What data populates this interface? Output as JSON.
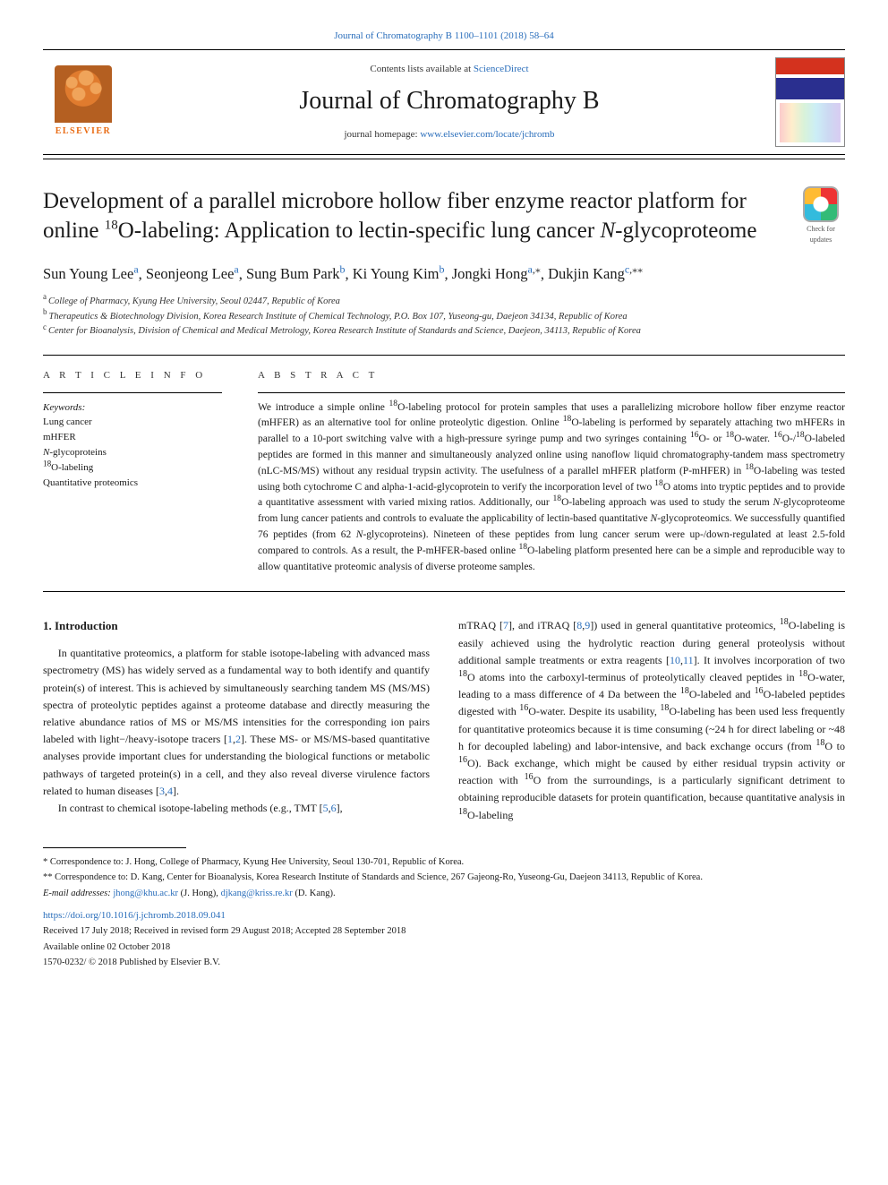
{
  "colors": {
    "link": "#2a6ebb",
    "text": "#1a1a1a",
    "elsevier_orange": "#e96b13",
    "cover_red": "#d4321e",
    "cover_blue": "#2a2f8f",
    "rule": "#000000"
  },
  "typography": {
    "body_family": "Georgia, 'Times New Roman', serif",
    "title_family": "'Times New Roman', serif",
    "journal_name_pt": 28,
    "article_title_pt": 25,
    "authors_pt": 16.5,
    "body_pt": 12,
    "abstract_pt": 11.5,
    "footnote_pt": 10.5
  },
  "top_link": "Journal of Chromatography B 1100–1101 (2018) 58–64",
  "masthead": {
    "contents_text": "Contents lists available at ",
    "contents_link": "ScienceDirect",
    "journal_name": "Journal of Chromatography B",
    "homepage_text": "journal homepage: ",
    "homepage_link": "www.elsevier.com/locate/jchromb",
    "publisher_word": "ELSEVIER"
  },
  "check_updates_label": "Check for updates",
  "title_parts": {
    "pre": "Development of a parallel microbore hollow fiber enzyme reactor platform for online ",
    "iso": "18",
    "mid": "O-labeling: Application to lectin-specific lung cancer ",
    "ital": "N",
    "post": "-glycoproteome"
  },
  "authors": [
    {
      "name": "Sun Young Lee",
      "aff": "a"
    },
    {
      "name": "Seonjeong Lee",
      "aff": "a"
    },
    {
      "name": "Sung Bum Park",
      "aff": "b"
    },
    {
      "name": "Ki Young Kim",
      "aff": "b"
    },
    {
      "name": "Jongki Hong",
      "aff": "a",
      "corr": "*"
    },
    {
      "name": "Dukjin Kang",
      "aff": "c",
      "corr": "**"
    }
  ],
  "affiliations": [
    {
      "key": "a",
      "text": "College of Pharmacy, Kyung Hee University, Seoul 02447, Republic of Korea"
    },
    {
      "key": "b",
      "text": "Therapeutics & Biotechnology Division, Korea Research Institute of Chemical Technology, P.O. Box 107, Yuseong-gu, Daejeon 34134, Republic of Korea"
    },
    {
      "key": "c",
      "text": "Center for Bioanalysis, Division of Chemical and Medical Metrology, Korea Research Institute of Standards and Science, Daejeon, 34113, Republic of Korea"
    }
  ],
  "article_info_head": "A R T I C L E  I N F O",
  "abstract_head": "A B S T R A C T",
  "keywords_label": "Keywords:",
  "keywords": [
    "Lung cancer",
    "mHFER",
    "N-glycoproteins",
    "18O-labeling",
    "Quantitative proteomics"
  ],
  "abstract_text": "We introduce a simple online 18O-labeling protocol for protein samples that uses a parallelizing microbore hollow fiber enzyme reactor (mHFER) as an alternative tool for online proteolytic digestion. Online 18O-labeling is performed by separately attaching two mHFERs in parallel to a 10-port switching valve with a high-pressure syringe pump and two syringes containing 16O- or 18O-water. 16O-/18O-labeled peptides are formed in this manner and simultaneously analyzed online using nanoflow liquid chromatography-tandem mass spectrometry (nLC-MS/MS) without any residual trypsin activity. The usefulness of a parallel mHFER platform (P-mHFER) in 18O-labeling was tested using both cytochrome C and alpha-1-acid-glycoprotein to verify the incorporation level of two 18O atoms into tryptic peptides and to provide a quantitative assessment with varied mixing ratios. Additionally, our 18O-labeling approach was used to study the serum N-glycoproteome from lung cancer patients and controls to evaluate the applicability of lectin-based quantitative N-glycoproteomics. We successfully quantified 76 peptides (from 62 N-glycoproteins). Nineteen of these peptides from lung cancer serum were up-/down-regulated at least 2.5-fold compared to controls. As a result, the P-mHFER-based online 18O-labeling platform presented here can be a simple and reproducible way to allow quantitative proteomic analysis of diverse proteome samples.",
  "section_heading": "1. Introduction",
  "intro_p1": "In quantitative proteomics, a platform for stable isotope-labeling with advanced mass spectrometry (MS) has widely served as a fundamental way to both identify and quantify protein(s) of interest. This is achieved by simultaneously searching tandem MS (MS/MS) spectra of proteolytic peptides against a proteome database and directly measuring the relative abundance ratios of MS or MS/MS intensities for the corresponding ion pairs labeled with light−/heavy-isotope tracers [1,2]. These MS- or MS/MS-based quantitative analyses provide important clues for understanding the biological functions or metabolic pathways of targeted protein(s) in a cell, and they also reveal diverse virulence factors related to human diseases [3,4].",
  "intro_p2_a": "In contrast to chemical isotope-labeling methods (e.g., TMT [5,6],",
  "intro_p2_b": "mTRAQ [7], and iTRAQ [8,9]) used in general quantitative proteomics, 18O-labeling is easily achieved using the hydrolytic reaction during general proteolysis without additional sample treatments or extra reagents [10,11]. It involves incorporation of two 18O atoms into the carboxyl-terminus of proteolytically cleaved peptides in 18O-water, leading to a mass difference of 4 Da between the 18O-labeled and 16O-labeled peptides digested with 16O-water. Despite its usability, 18O-labeling has been used less frequently for quantitative proteomics because it is time consuming (~24 h for direct labeling or ~48 h for decoupled labeling) and labor-intensive, and back exchange occurs (from 18O to 16O). Back exchange, which might be caused by either residual trypsin activity or reaction with 16O from the surroundings, is a particularly significant detriment to obtaining reproducible datasets for protein quantification, because quantitative analysis in 18O-labeling",
  "refs_in_p1": [
    "1",
    "2",
    "3",
    "4"
  ],
  "refs_in_p2": [
    "5",
    "6",
    "7",
    "8",
    "9",
    "10",
    "11"
  ],
  "footnotes": {
    "corr1": "* Correspondence to: J. Hong, College of Pharmacy, Kyung Hee University, Seoul 130-701, Republic of Korea.",
    "corr2": "** Correspondence to: D. Kang, Center for Bioanalysis, Korea Research Institute of Standards and Science, 267 Gajeong-Ro, Yuseong-Gu, Daejeon 34113, Republic of Korea.",
    "email_label": "E-mail addresses: ",
    "email1": "jhong@khu.ac.kr",
    "email1_who": " (J. Hong), ",
    "email2": "djkang@kriss.re.kr",
    "email2_who": " (D. Kang)."
  },
  "doi": "https://doi.org/10.1016/j.jchromb.2018.09.041",
  "history": "Received 17 July 2018; Received in revised form 29 August 2018; Accepted 28 September 2018",
  "available": "Available online 02 October 2018",
  "isbn": "1570-0232/ © 2018 Published by Elsevier B.V."
}
